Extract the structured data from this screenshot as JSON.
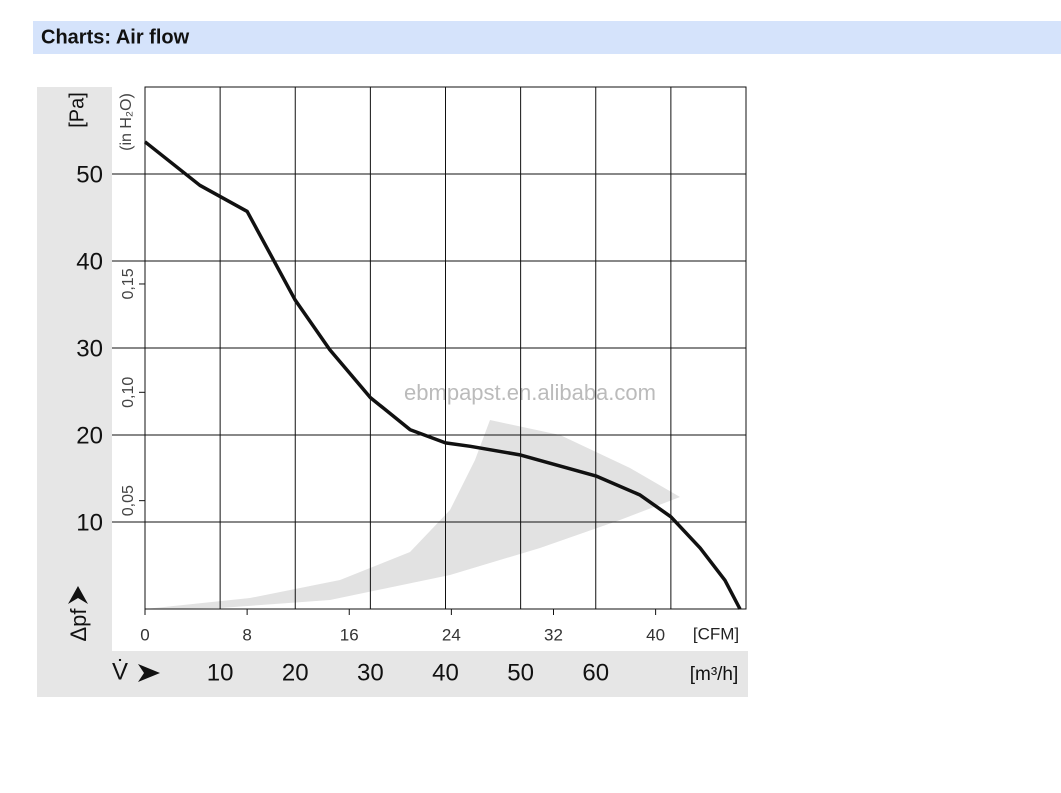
{
  "header": {
    "title": "Charts: Air flow"
  },
  "chart_data": {
    "type": "line",
    "x_label": "V̇",
    "x_unit": "[m³/h]",
    "y_label": "Δpf",
    "y_unit": "[Pa]",
    "x2_unit": "[CFM]",
    "y2_unit": "(in H₂O)",
    "watermark": "ebmpapst.en.alibaba.com",
    "x": [
      0,
      7.3,
      13.6,
      20,
      24.6,
      30,
      35.3,
      40,
      43.3,
      50,
      60,
      65.9,
      70,
      73.9,
      77.2,
      79.2
    ],
    "series": [
      {
        "color": "#111111",
        "values": [
          53.7,
          48.7,
          45.7,
          35.5,
          29.8,
          24.3,
          20.6,
          19.1,
          18.7,
          17.7,
          15.3,
          13.1,
          10.6,
          7.0,
          3.3,
          0
        ]
      }
    ],
    "xlim": [
      0,
      80
    ],
    "xticks": [
      10,
      20,
      30,
      40,
      50,
      60
    ],
    "xgrid": [
      10,
      20,
      30,
      40,
      50,
      60,
      70
    ],
    "ylim": [
      0,
      60
    ],
    "yticks": [
      10,
      20,
      30,
      40,
      50
    ],
    "x2lim": [
      0,
      47.08
    ],
    "x2ticks": [
      0,
      8,
      16,
      24,
      32,
      40
    ],
    "y2lim": [
      0,
      0.2409
    ],
    "y2ticks": [
      {
        "value": 0.05,
        "label": "0,05"
      },
      {
        "value": 0.1,
        "label": "0,10"
      },
      {
        "value": 0.15,
        "label": "0,15"
      }
    ],
    "grid": true
  }
}
